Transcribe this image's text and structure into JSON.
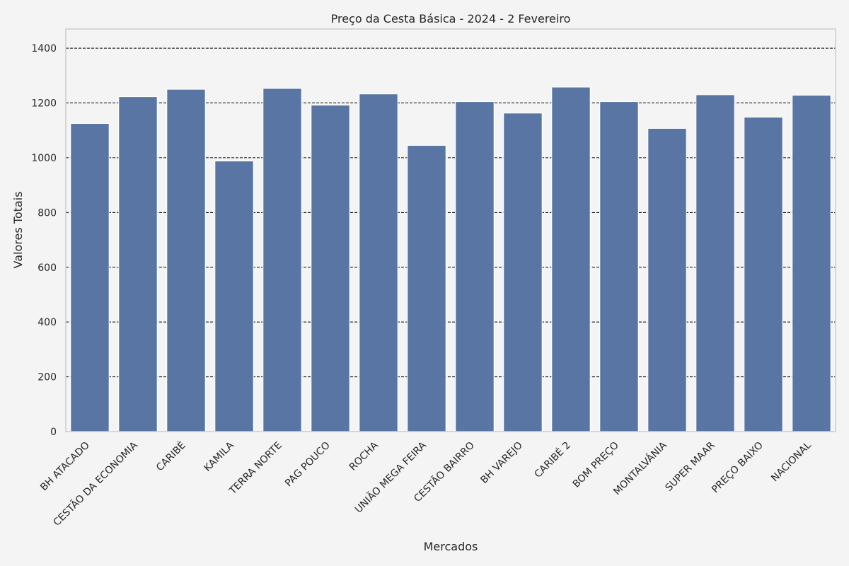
{
  "colors": {
    "background": "#f4f4f4",
    "bar": "#5975a4",
    "grid": "#000000",
    "frame": "#cfcfcf",
    "text": "#262626"
  },
  "chart_data": {
    "type": "bar",
    "title": "Preço da Cesta Básica - 2024 - 2 Fevereiro",
    "xlabel": "Mercados",
    "ylabel": "Valores Totais",
    "ylim": [
      0,
      1470
    ],
    "yticks": [
      0,
      200,
      400,
      600,
      800,
      1000,
      1200,
      1400
    ],
    "grid": true,
    "categories": [
      "BH ATACADO",
      "CESTÃO DA ECONOMIA",
      "CARIBÉ",
      "KAMILA",
      "TERRA NORTE",
      "PAG POUCO",
      "ROCHA",
      "UNIÃO MEGA FEIRA",
      "CESTÃO BAIRRO",
      "BH VAREJO",
      "CARIBÉ 2",
      "BOM PREÇO",
      "MONTALVÂNIA",
      "SUPER MAAR",
      "PREÇO BAIXO",
      "NACIONAL"
    ],
    "values": [
      1125,
      1223,
      1250,
      988,
      1253,
      1192,
      1233,
      1045,
      1205,
      1163,
      1258,
      1205,
      1107,
      1230,
      1148,
      1228
    ]
  }
}
